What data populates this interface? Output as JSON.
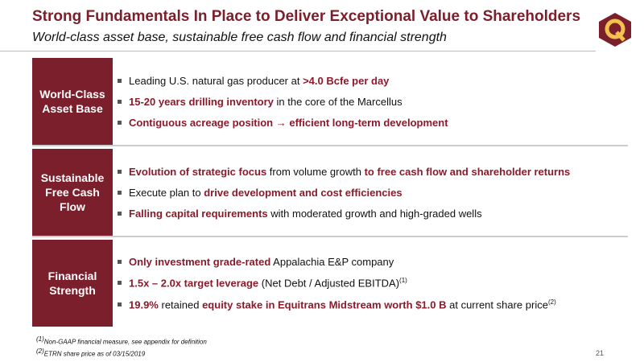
{
  "header": {
    "title": "Strong Fundamentals In Place to Deliver Exceptional Value to Shareholders",
    "subtitle": "World-class asset base, sustainable free cash flow and financial strength"
  },
  "sections": [
    {
      "label": "World-Class Asset Base",
      "bullets": [
        [
          {
            "text": "Leading U.S. natural gas producer at ",
            "emphasis": false
          },
          {
            "text": ">4.0 Bcfe per day",
            "emphasis": true
          }
        ],
        [
          {
            "text": "15-20 years drilling inventory",
            "emphasis": true
          },
          {
            "text": " in the core of the Marcellus",
            "emphasis": false
          }
        ],
        [
          {
            "text": "Contiguous acreage position → efficient long-term development",
            "emphasis": true
          }
        ]
      ]
    },
    {
      "label": "Sustainable Free Cash Flow",
      "bullets": [
        [
          {
            "text": "Evolution of strategic focus",
            "emphasis": true
          },
          {
            "text": " from volume growth ",
            "emphasis": false
          },
          {
            "text": "to free cash flow and shareholder returns",
            "emphasis": true
          }
        ],
        [
          {
            "text": "Execute plan to ",
            "emphasis": false
          },
          {
            "text": "drive development and cost efficiencies",
            "emphasis": true
          }
        ],
        [
          {
            "text": "Falling capital requirements",
            "emphasis": true
          },
          {
            "text": " with moderated growth and high-graded wells",
            "emphasis": false
          }
        ]
      ]
    },
    {
      "label": "Financial Strength",
      "bullets": [
        [
          {
            "text": "Only investment grade-rated",
            "emphasis": true
          },
          {
            "text": " Appalachia E&P company",
            "emphasis": false
          }
        ],
        [
          {
            "text": "1.5x – 2.0x target leverage",
            "emphasis": true
          },
          {
            "text": " (Net Debt / Adjusted EBITDA)",
            "emphasis": false
          },
          {
            "text": "(1)",
            "emphasis": false,
            "superscript": true
          }
        ],
        [
          {
            "text": "19.9%",
            "emphasis": true
          },
          {
            "text": " retained ",
            "emphasis": false
          },
          {
            "text": "equity stake in Equitrans Midstream worth $1.0 B",
            "emphasis": true
          },
          {
            "text": " at current share price",
            "emphasis": false
          },
          {
            "text": "(2)",
            "emphasis": false,
            "superscript": true
          }
        ]
      ]
    }
  ],
  "footnotes": [
    {
      "mark": "(1)",
      "text": "Non-GAAP financial measure, see appendix for definition"
    },
    {
      "mark": "(2)",
      "text": "ETRN share price as of 03/15/2019"
    }
  ],
  "page_number": "21"
}
